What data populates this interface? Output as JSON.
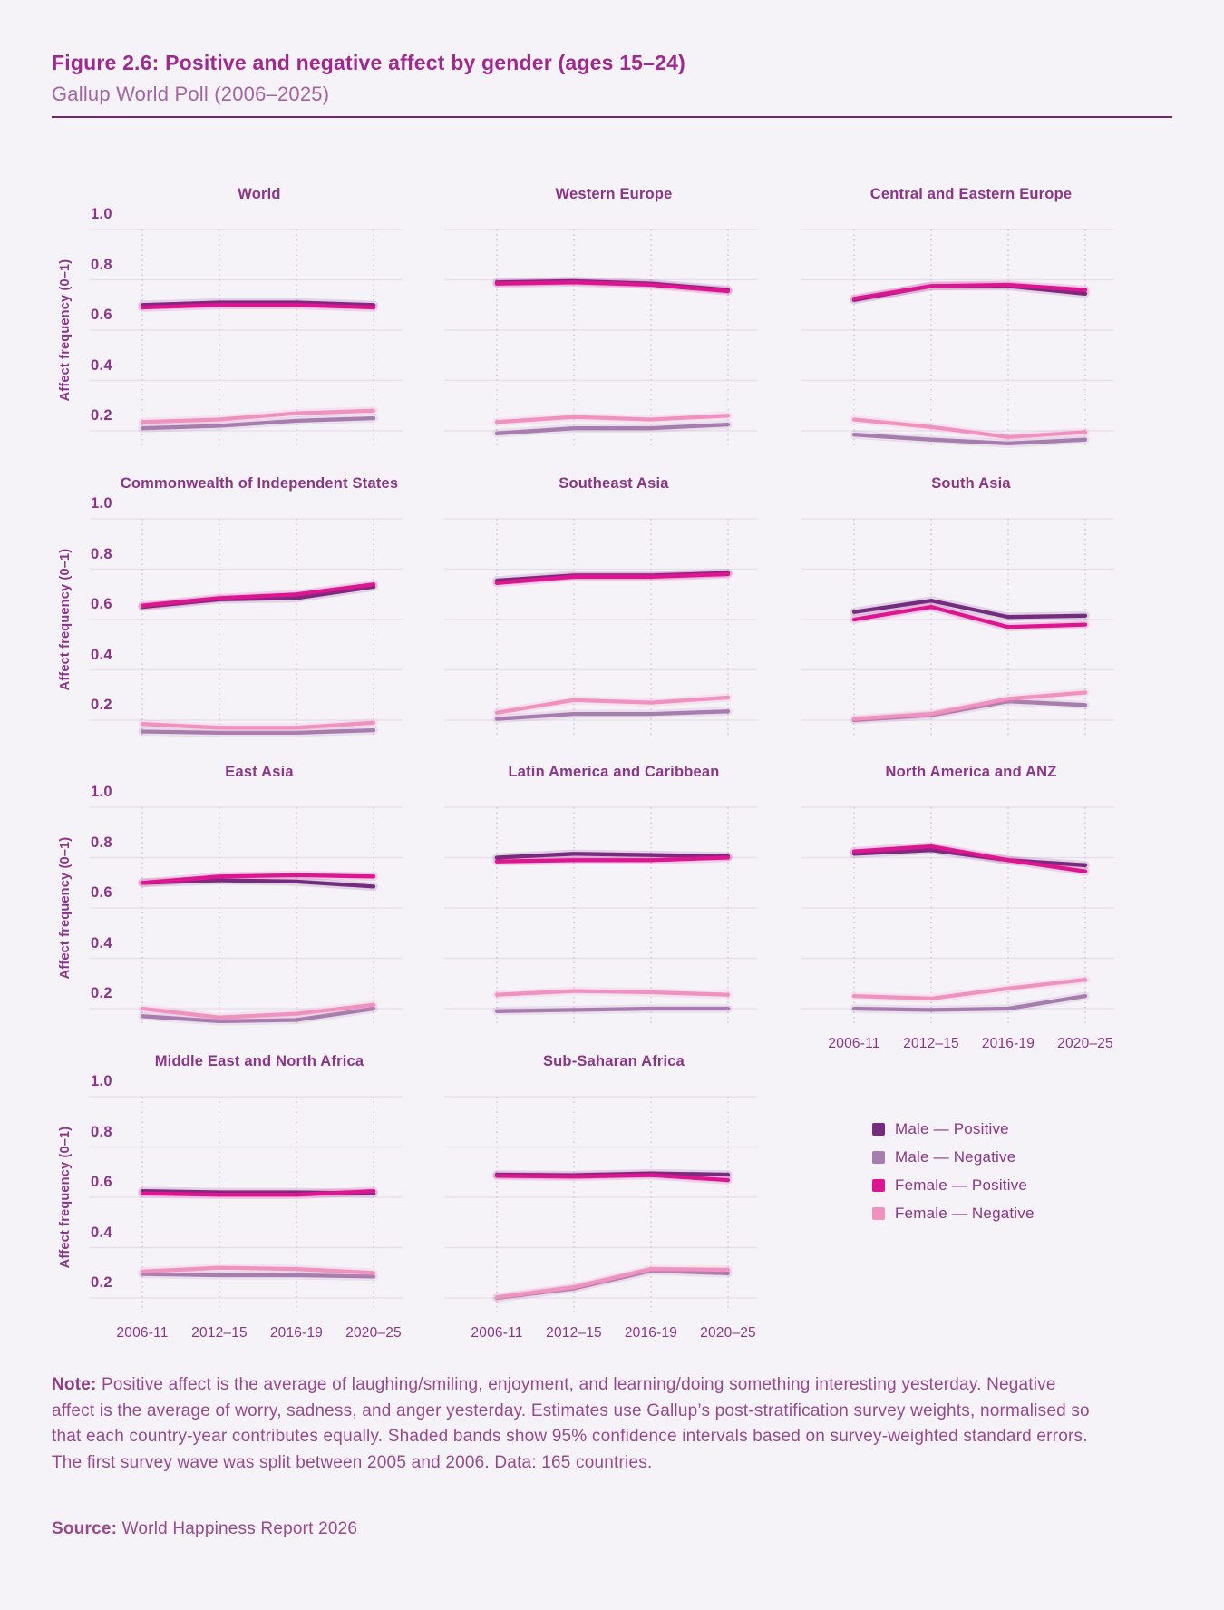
{
  "header": {
    "title": "Figure 2.6: Positive and negative affect by gender (ages 15–24)",
    "subtitle": "Gallup World Poll (2006–2025)"
  },
  "axis": {
    "y_label": "Affect frequency (0–1)",
    "y_ticks": [
      "1.0",
      "0.8",
      "0.6",
      "0.4",
      "0.2"
    ],
    "x_ticks": [
      "2006-11",
      "2012–15",
      "2016-19",
      "2020–25"
    ]
  },
  "colors": {
    "male_positive": "#732c7e",
    "male_negative": "#a77cae",
    "female_positive": "#de1590",
    "female_negative": "#f092c0",
    "grid": "#e8dfeb",
    "grid_dotted": "#cfc3d8",
    "accent_text": "#8b348a"
  },
  "legend": [
    {
      "label": "Male — Positive",
      "series": "male_positive"
    },
    {
      "label": "Male — Negative",
      "series": "male_negative"
    },
    {
      "label": "Female — Positive",
      "series": "female_positive"
    },
    {
      "label": "Female — Negative",
      "series": "female_negative"
    }
  ],
  "chart_data": {
    "type": "line",
    "x_categories": [
      "2006-11",
      "2012–15",
      "2016-19",
      "2020–25"
    ],
    "ylim": [
      0.1,
      1.0
    ],
    "yticks": [
      1.0,
      0.8,
      0.6,
      0.4,
      0.2
    ],
    "grid": "horizontal solid, vertical dotted at each survey wave",
    "legend_position": "bottom-right cell of 3x4 facet grid",
    "series_names": [
      "male_positive",
      "male_negative",
      "female_positive",
      "female_negative"
    ],
    "panels": [
      {
        "title": "World",
        "male_positive": [
          0.7,
          0.71,
          0.71,
          0.7
        ],
        "male_negative": [
          0.21,
          0.22,
          0.24,
          0.25
        ],
        "female_positive": [
          0.69,
          0.7,
          0.7,
          0.69
        ],
        "female_negative": [
          0.235,
          0.245,
          0.27,
          0.28
        ]
      },
      {
        "title": "Western Europe",
        "male_positive": [
          0.79,
          0.795,
          0.785,
          0.76
        ],
        "male_negative": [
          0.19,
          0.21,
          0.21,
          0.225
        ],
        "female_positive": [
          0.785,
          0.79,
          0.78,
          0.755
        ],
        "female_negative": [
          0.235,
          0.255,
          0.245,
          0.26
        ]
      },
      {
        "title": "Central and Eastern Europe",
        "male_positive": [
          0.72,
          0.775,
          0.775,
          0.745
        ],
        "male_negative": [
          0.185,
          0.165,
          0.15,
          0.165
        ],
        "female_positive": [
          0.725,
          0.775,
          0.78,
          0.76
        ],
        "female_negative": [
          0.245,
          0.215,
          0.175,
          0.195
        ]
      },
      {
        "title": "Commonwealth of Independent States",
        "male_positive": [
          0.65,
          0.68,
          0.685,
          0.73
        ],
        "male_negative": [
          0.155,
          0.15,
          0.15,
          0.16
        ],
        "female_positive": [
          0.655,
          0.685,
          0.7,
          0.74
        ],
        "female_negative": [
          0.185,
          0.17,
          0.17,
          0.19
        ]
      },
      {
        "title": "Southeast Asia",
        "male_positive": [
          0.755,
          0.775,
          0.775,
          0.785
        ],
        "male_negative": [
          0.205,
          0.225,
          0.225,
          0.235
        ],
        "female_positive": [
          0.745,
          0.77,
          0.77,
          0.78
        ],
        "female_negative": [
          0.23,
          0.28,
          0.27,
          0.29
        ]
      },
      {
        "title": "South Asia",
        "male_positive": [
          0.63,
          0.675,
          0.61,
          0.615
        ],
        "male_negative": [
          0.2,
          0.22,
          0.275,
          0.26
        ],
        "female_positive": [
          0.6,
          0.65,
          0.57,
          0.58
        ],
        "female_negative": [
          0.205,
          0.225,
          0.285,
          0.31
        ]
      },
      {
        "title": "East Asia",
        "male_positive": [
          0.7,
          0.71,
          0.705,
          0.685
        ],
        "male_negative": [
          0.17,
          0.15,
          0.155,
          0.2
        ],
        "female_positive": [
          0.7,
          0.725,
          0.73,
          0.725
        ],
        "female_negative": [
          0.2,
          0.165,
          0.18,
          0.215
        ]
      },
      {
        "title": "Latin America and Caribbean",
        "male_positive": [
          0.8,
          0.815,
          0.81,
          0.805
        ],
        "male_negative": [
          0.19,
          0.195,
          0.2,
          0.2
        ],
        "female_positive": [
          0.785,
          0.79,
          0.79,
          0.8
        ],
        "female_negative": [
          0.255,
          0.27,
          0.265,
          0.255
        ]
      },
      {
        "title": "North America and ANZ",
        "male_positive": [
          0.815,
          0.83,
          0.79,
          0.77
        ],
        "male_negative": [
          0.2,
          0.195,
          0.2,
          0.25
        ],
        "female_positive": [
          0.825,
          0.845,
          0.79,
          0.745
        ],
        "female_negative": [
          0.25,
          0.24,
          0.28,
          0.315
        ]
      },
      {
        "title": "Middle East and North Africa",
        "male_positive": [
          0.625,
          0.62,
          0.62,
          0.615
        ],
        "male_negative": [
          0.295,
          0.29,
          0.29,
          0.285
        ],
        "female_positive": [
          0.615,
          0.61,
          0.61,
          0.625
        ],
        "female_negative": [
          0.305,
          0.32,
          0.315,
          0.3
        ]
      },
      {
        "title": "Sub-Saharan Africa",
        "male_positive": [
          0.69,
          0.688,
          0.695,
          0.69
        ],
        "male_negative": [
          0.2,
          0.238,
          0.308,
          0.298
        ],
        "female_positive": [
          0.685,
          0.682,
          0.688,
          0.668
        ],
        "female_negative": [
          0.203,
          0.243,
          0.315,
          0.312
        ]
      }
    ]
  },
  "note": {
    "label": "Note:",
    "text": " Positive affect is the average of laughing/smiling, enjoyment, and learning/doing something interesting yesterday. Negative affect is the average of worry, sadness, and anger yesterday. Estimates use Gallup’s post-stratification survey weights, normalised so that each country-year contributes equally. Shaded bands show 95% confidence intervals based on survey-weighted standard errors. The first survey wave was split between 2005 and 2006. Data: 165 countries."
  },
  "source": {
    "label": "Source:",
    "text": " World Happiness Report 2026"
  }
}
